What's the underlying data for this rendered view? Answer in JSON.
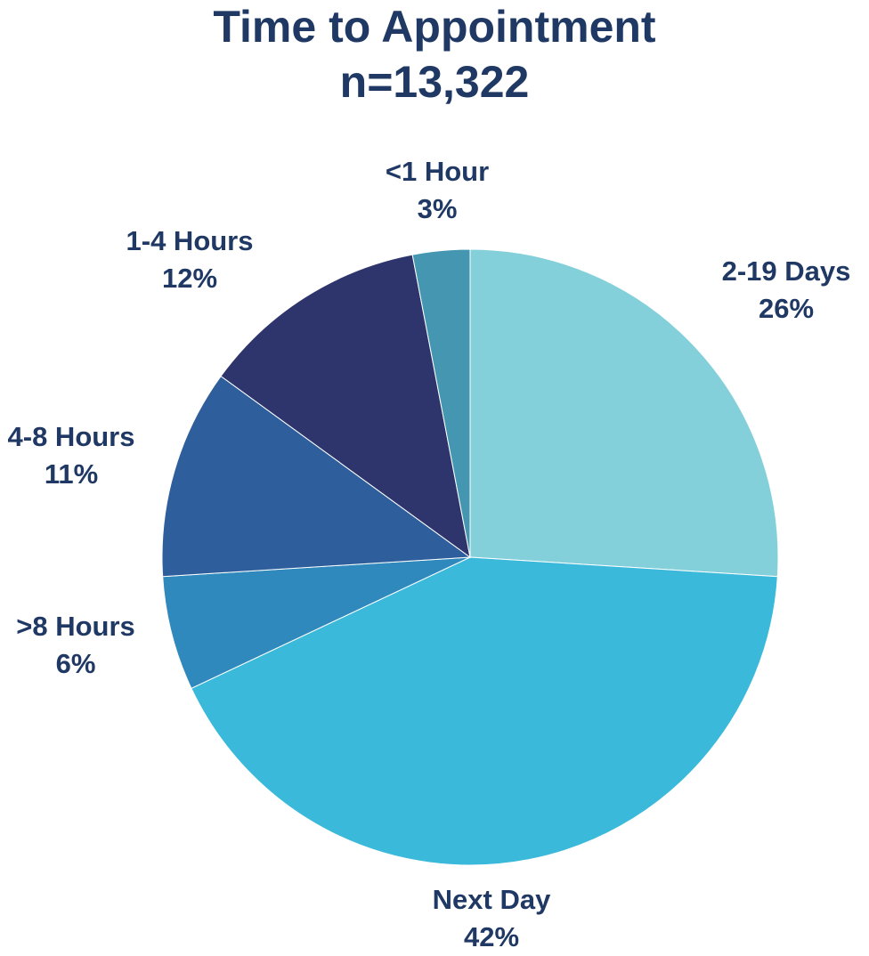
{
  "title_line1": "Time to Appointment",
  "title_line2": "n=13,322",
  "chart_data": {
    "type": "pie",
    "title": "Time to Appointment",
    "subtitle": "n=13,322",
    "start_angle_deg": 0,
    "direction": "clockwise",
    "slices": [
      {
        "label": "2-19 Days",
        "value": 26,
        "value_label": "26%",
        "color": "#84d0da"
      },
      {
        "label": "Next Day",
        "value": 42,
        "value_label": "42%",
        "color": "#3bb9da"
      },
      {
        "label": ">8 Hours",
        "value": 6,
        "value_label": "6%",
        "color": "#2f89bc"
      },
      {
        "label": "4-8 Hours",
        "value": 11,
        "value_label": "11%",
        "color": "#2e5f9c"
      },
      {
        "label": "1-4 Hours",
        "value": 12,
        "value_label": "12%",
        "color": "#2e346c"
      },
      {
        "label": "<1 Hour",
        "value": 3,
        "value_label": "3%",
        "color": "#4597b1"
      }
    ]
  }
}
